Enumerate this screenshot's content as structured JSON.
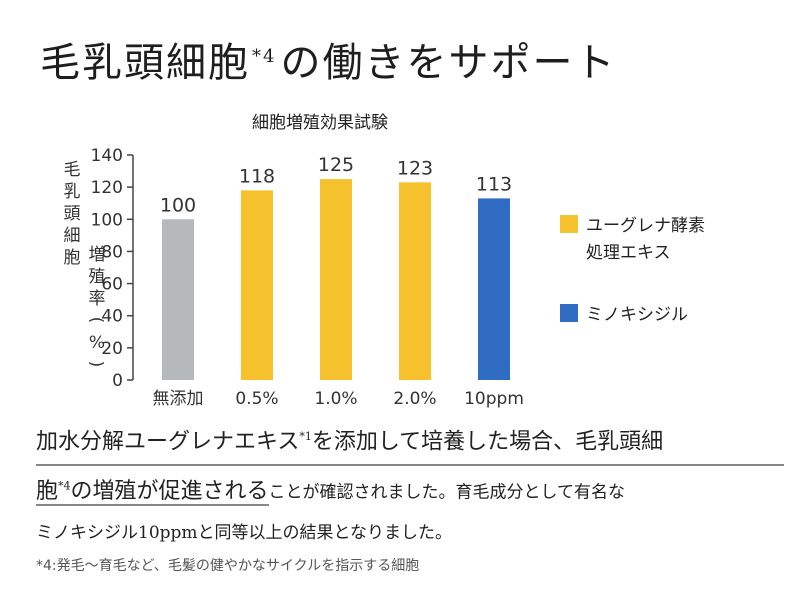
{
  "headline": {
    "main": "毛乳頭細胞",
    "ref": "*4",
    "tail": "の働きをサポート"
  },
  "chart_data": {
    "type": "bar",
    "title": "細胞増殖効果試験",
    "ylabel": "毛乳頭細胞 増殖率(%)",
    "ylim": [
      0,
      140
    ],
    "yticks": [
      0,
      20,
      40,
      60,
      80,
      100,
      120,
      140
    ],
    "categories": [
      "無添加",
      "0.5%",
      "1.0%",
      "2.0%",
      "10ppm"
    ],
    "values": [
      100,
      118,
      125,
      123,
      113
    ],
    "bar_colors": [
      "#b5b9bc",
      "#f5c22e",
      "#f5c22e",
      "#f5c22e",
      "#2f6cc2"
    ],
    "legend": [
      {
        "label": "ユーグレナ酵素処理エキス",
        "color": "#f5c22e"
      },
      {
        "label": "ミノキシジル",
        "color": "#2f6cc2"
      }
    ],
    "legend_position": "right",
    "grid": false
  },
  "body": {
    "l1": "加水分解ユーグレナエキス",
    "l1_ref": "*1",
    "l1_b": "を添加して培養した場合、毛乳頭細",
    "l2_a": "胞",
    "l2_ref": "*4",
    "l2_b": "の増殖が促進される",
    "l2_c": "ことが確認されました。育毛成分として有名な",
    "l3": "ミノキシジル10ppmと同等以上の結果となりました。"
  },
  "footnote": "*4:発毛〜育毛など、毛髪の健やかなサイクルを指示する細胞"
}
